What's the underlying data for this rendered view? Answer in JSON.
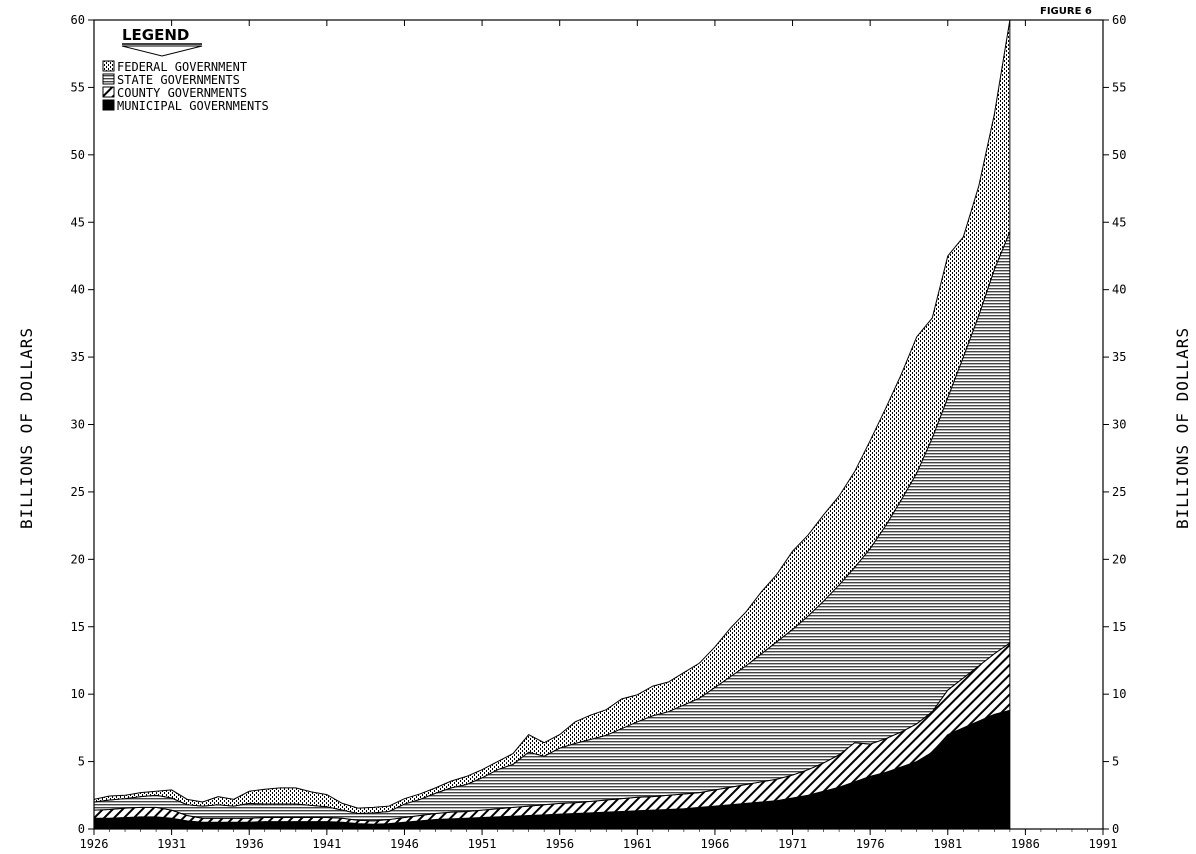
{
  "figure_label": "FIGURE 6",
  "chart_data": {
    "type": "area",
    "stacked": true,
    "ylabel_left": "BILLIONS OF DOLLARS",
    "ylabel_right": "BILLIONS OF DOLLARS",
    "xlim": [
      1926,
      1991
    ],
    "ylim": [
      0,
      60
    ],
    "x_ticks": [
      1926,
      1931,
      1936,
      1941,
      1946,
      1951,
      1956,
      1961,
      1966,
      1971,
      1976,
      1981,
      1986,
      1991
    ],
    "y_ticks": [
      0,
      5,
      10,
      15,
      20,
      25,
      30,
      35,
      40,
      45,
      50,
      55,
      60
    ],
    "legend": {
      "title": "LEGEND",
      "position": "top-left",
      "entries": [
        "FEDERAL GOVERNMENT",
        "STATE GOVERNMENTS",
        "COUNTY GOVERNMENTS",
        "MUNICIPAL GOVERNMENTS"
      ]
    },
    "x": [
      1926,
      1927,
      1928,
      1929,
      1930,
      1931,
      1932,
      1933,
      1934,
      1935,
      1936,
      1937,
      1938,
      1939,
      1940,
      1941,
      1942,
      1943,
      1944,
      1945,
      1946,
      1947,
      1948,
      1949,
      1950,
      1951,
      1952,
      1953,
      1954,
      1955,
      1956,
      1957,
      1958,
      1959,
      1960,
      1961,
      1962,
      1963,
      1964,
      1965,
      1966,
      1967,
      1968,
      1969,
      1970,
      1971,
      1972,
      1973,
      1974,
      1975,
      1976,
      1977,
      1978,
      1979,
      1980,
      1981,
      1982,
      1983,
      1984,
      1985
    ],
    "series": [
      {
        "name": "MUNICIPAL GOVERNMENTS",
        "values": [
          0.8,
          0.8,
          0.85,
          0.9,
          0.9,
          0.8,
          0.6,
          0.5,
          0.5,
          0.5,
          0.5,
          0.55,
          0.55,
          0.55,
          0.55,
          0.55,
          0.5,
          0.4,
          0.35,
          0.4,
          0.5,
          0.6,
          0.7,
          0.75,
          0.8,
          0.85,
          0.9,
          0.95,
          1.0,
          1.05,
          1.1,
          1.15,
          1.2,
          1.25,
          1.3,
          1.35,
          1.4,
          1.45,
          1.5,
          1.6,
          1.7,
          1.8,
          1.9,
          2.0,
          2.1,
          2.3,
          2.5,
          2.8,
          3.1,
          3.5,
          3.9,
          4.2,
          4.6,
          5.0,
          5.7,
          7.0,
          7.5,
          8.0,
          8.5,
          8.8
        ]
      },
      {
        "name": "COUNTY GOVERNMENTS",
        "values": [
          0.6,
          0.65,
          0.7,
          0.7,
          0.7,
          0.6,
          0.4,
          0.3,
          0.3,
          0.3,
          0.3,
          0.3,
          0.3,
          0.3,
          0.3,
          0.3,
          0.3,
          0.25,
          0.25,
          0.3,
          0.35,
          0.4,
          0.45,
          0.5,
          0.5,
          0.55,
          0.6,
          0.65,
          0.7,
          0.75,
          0.8,
          0.8,
          0.85,
          0.9,
          0.95,
          1.0,
          1.0,
          1.05,
          1.1,
          1.1,
          1.2,
          1.3,
          1.4,
          1.5,
          1.6,
          1.7,
          1.9,
          2.1,
          2.4,
          2.9,
          2.4,
          2.5,
          2.6,
          2.8,
          3.0,
          3.3,
          3.7,
          4.1,
          4.5,
          5.0
        ]
      },
      {
        "name": "STATE GOVERNMENTS",
        "values": [
          0.6,
          0.7,
          0.7,
          0.8,
          0.9,
          0.9,
          0.8,
          0.9,
          1.0,
          0.9,
          1.1,
          1.0,
          1.0,
          1.0,
          0.9,
          0.8,
          0.6,
          0.5,
          0.6,
          0.6,
          1.0,
          1.2,
          1.5,
          1.8,
          2.0,
          2.4,
          2.9,
          3.2,
          4.0,
          3.6,
          4.1,
          4.4,
          4.6,
          4.8,
          5.2,
          5.6,
          6.0,
          6.2,
          6.6,
          7.0,
          7.6,
          8.2,
          8.8,
          9.5,
          10.2,
          10.8,
          11.4,
          12.0,
          12.6,
          13.0,
          14.5,
          15.8,
          17.2,
          18.6,
          20.3,
          21.7,
          23.8,
          26.0,
          28.5,
          30.5
        ]
      },
      {
        "name": "FEDERAL GOVERNMENT",
        "values": [
          0.2,
          0.3,
          0.25,
          0.3,
          0.3,
          0.6,
          0.4,
          0.3,
          0.6,
          0.5,
          0.9,
          1.1,
          1.2,
          1.2,
          1.0,
          0.9,
          0.5,
          0.4,
          0.4,
          0.4,
          0.4,
          0.4,
          0.4,
          0.5,
          0.6,
          0.6,
          0.6,
          0.8,
          1.3,
          1.0,
          1.0,
          1.6,
          1.8,
          1.9,
          2.2,
          2.0,
          2.2,
          2.2,
          2.4,
          2.6,
          3.0,
          3.6,
          4.0,
          4.6,
          5.0,
          5.8,
          6.0,
          6.4,
          6.6,
          7.1,
          8.0,
          8.7,
          9.3,
          10.1,
          8.9,
          10.5,
          8.9,
          9.6,
          11.5,
          15.7
        ]
      }
    ]
  }
}
